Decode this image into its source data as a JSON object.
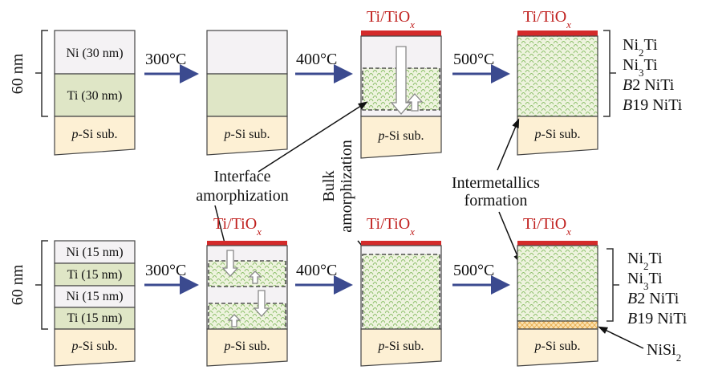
{
  "substrate": {
    "italic": "p",
    "text": "-Si sub."
  },
  "cap": {
    "text": "Ti/TiO",
    "sub": "x"
  },
  "rows": [
    {
      "thickness": "60 nm",
      "layers": [
        "Ni (30 nm)",
        "Ti (30 nm)"
      ],
      "temperatures": [
        "300°C",
        "400°C",
        "500°C"
      ],
      "phases": [
        {
          "text": "Ni",
          "sub": "2",
          "rest": "Ti"
        },
        {
          "text": "Ni",
          "sub": "3",
          "rest": "Ti"
        },
        {
          "italic": "B",
          "text": "2 NiTi"
        },
        {
          "italic": "B",
          "text": "19 NiTi"
        }
      ]
    },
    {
      "thickness": "60 nm",
      "layers": [
        "Ni (15 nm)",
        "Ti (15 nm)",
        "Ni (15 nm)",
        "Ti (15 nm)"
      ],
      "temperatures": [
        "300°C",
        "400°C",
        "500°C"
      ],
      "phases": [
        {
          "text": "Ni",
          "sub": "2",
          "rest": "Ti"
        },
        {
          "text": "Ni",
          "sub": "3",
          "rest": "Ti"
        },
        {
          "italic": "B",
          "text": "2 NiTi"
        },
        {
          "italic": "B",
          "text": "19 NiTi"
        }
      ]
    }
  ],
  "annotations": {
    "interface": [
      "Interface",
      "amorphization"
    ],
    "bulk": [
      "Bulk",
      "amorphization"
    ],
    "intermetallics": [
      "Intermetallics",
      "formation"
    ],
    "nisi2": {
      "text": "NiSi",
      "sub": "2"
    }
  }
}
